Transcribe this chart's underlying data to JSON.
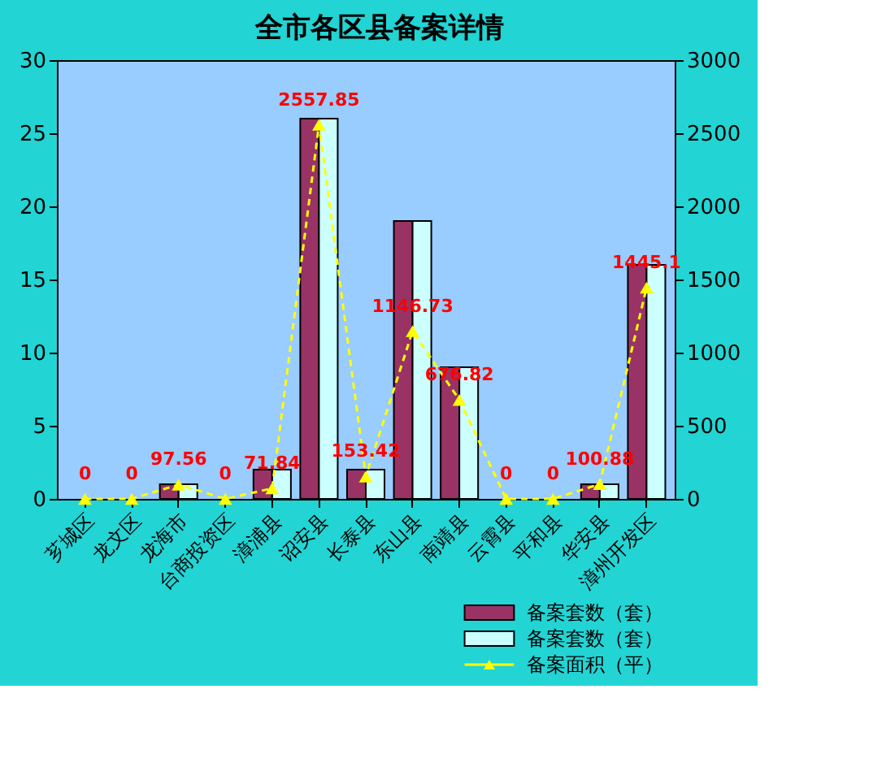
{
  "chart_data": {
    "type": "bar",
    "title": "全市各区县备案详情",
    "categories": [
      "芗城区",
      "龙文区",
      "龙海市",
      "台商投资区",
      "漳浦县",
      "诏安县",
      "长泰县",
      "东山县",
      "南靖县",
      "云霄县",
      "平和县",
      "华安县",
      "漳州开发区"
    ],
    "series": [
      {
        "name": "备案套数（套）",
        "color": "#993366",
        "values": [
          0,
          0,
          1,
          0,
          2,
          26,
          2,
          19,
          9,
          0,
          0,
          1,
          16
        ]
      },
      {
        "name": "备案套数（套）",
        "color": "#ccffff",
        "values": [
          0,
          0,
          1,
          0,
          2,
          26,
          2,
          19,
          9,
          0,
          0,
          1,
          16
        ]
      },
      {
        "name": "备案面积（平）",
        "type": "line",
        "axis": "y2",
        "color": "#ffff00",
        "marker": "triangle",
        "line_style": "dashed",
        "values": [
          0,
          0,
          97.56,
          0,
          71.84,
          2557.85,
          153.42,
          1146.73,
          676.82,
          0,
          0,
          100.88,
          1445.1
        ],
        "value_labels": [
          "0",
          "0",
          "97.56",
          "0",
          "71.84",
          "2557.85",
          "153.42",
          "1146.73",
          "676.82",
          "0",
          "0",
          "100.88",
          "1445.1"
        ]
      }
    ],
    "ylim": [
      0,
      30
    ],
    "yticks": [
      0,
      5,
      10,
      15,
      20,
      25,
      30
    ],
    "y2lim": [
      0,
      3000
    ],
    "y2ticks": [
      0,
      500,
      1000,
      1500,
      2000,
      2500,
      3000
    ],
    "grid": false,
    "legend": "bottom right"
  }
}
